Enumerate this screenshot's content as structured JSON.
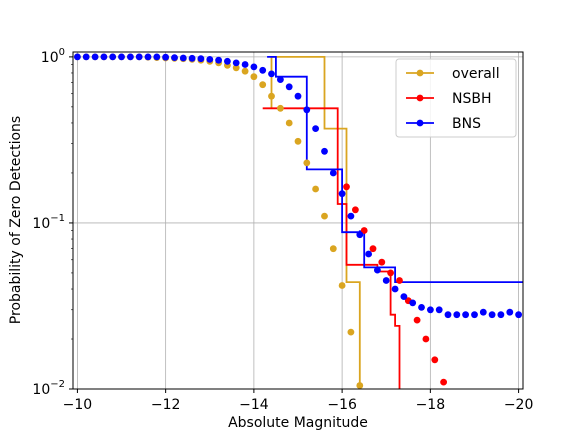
{
  "chart_data": {
    "type": "scatter",
    "xlabel": "Absolute Magnitude",
    "ylabel": "Probability of Zero Detections",
    "xlim": [
      -9.9,
      -20.1
    ],
    "ylim": [
      0.01,
      1.07
    ],
    "yscale": "log",
    "x_inverted": true,
    "grid": true,
    "legend_position": "top-right",
    "x_ticks": [
      -10,
      -12,
      -14,
      -16,
      -18,
      -20
    ],
    "x_tick_labels": [
      "−10",
      "−12",
      "−14",
      "−16",
      "−18",
      "−20"
    ],
    "y_ticks": [
      1,
      0.1,
      0.01
    ],
    "y_tick_labels": [
      {
        "base": "10",
        "exp": "0"
      },
      {
        "base": "10",
        "exp": "−1"
      },
      {
        "base": "10",
        "exp": "−2"
      }
    ],
    "series": [
      {
        "name": "overall",
        "color": "#DAA520",
        "points": {
          "x": [
            -10.0,
            -10.2,
            -10.4,
            -10.6,
            -10.8,
            -11.0,
            -11.2,
            -11.4,
            -11.6,
            -11.8,
            -12.0,
            -12.2,
            -12.4,
            -12.6,
            -12.8,
            -13.0,
            -13.2,
            -13.4,
            -13.6,
            -13.8,
            -14.0,
            -14.2,
            -14.4,
            -14.6,
            -14.8,
            -15.0,
            -15.2,
            -15.4,
            -15.6,
            -15.8,
            -16.0,
            -16.2,
            -16.4
          ],
          "y": [
            1.0,
            1.0,
            1.0,
            1.0,
            1.0,
            1.0,
            1.0,
            1.0,
            0.995,
            0.99,
            0.985,
            0.98,
            0.975,
            0.965,
            0.955,
            0.94,
            0.92,
            0.89,
            0.86,
            0.82,
            0.76,
            0.68,
            0.58,
            0.49,
            0.4,
            0.31,
            0.23,
            0.16,
            0.11,
            0.07,
            0.042,
            0.022,
            0.0105
          ]
        },
        "step": {
          "x": [
            -14.4,
            -14.4,
            -15.6,
            -15.6,
            -16.1,
            -16.1,
            -16.4,
            -16.4
          ],
          "y": [
            0.49,
            1.0,
            1.0,
            0.37,
            0.37,
            0.044,
            0.044,
            0.005
          ]
        }
      },
      {
        "name": "NSBH",
        "color": "#FF0000",
        "points": {
          "x": [
            -16.1,
            -16.3,
            -16.5,
            -16.7,
            -16.9,
            -17.1,
            -17.3,
            -17.5,
            -17.7,
            -17.9,
            -18.1,
            -18.3,
            -18.5
          ],
          "y": [
            0.165,
            0.12,
            0.09,
            0.07,
            0.058,
            0.05,
            0.045,
            0.034,
            0.026,
            0.02,
            0.015,
            0.011,
            0.008
          ]
        },
        "step": {
          "x": [
            -14.2,
            -15.9,
            -15.9,
            -16.1,
            -16.1,
            -16.8,
            -16.8,
            -17.1,
            -17.1,
            -17.2,
            -17.2,
            -17.3,
            -17.3
          ],
          "y": [
            0.49,
            0.49,
            0.13,
            0.13,
            0.056,
            0.056,
            0.051,
            0.051,
            0.028,
            0.028,
            0.024,
            0.024,
            0.005
          ]
        }
      },
      {
        "name": "BNS",
        "color": "#0000FF",
        "points": {
          "x": [
            -10.0,
            -10.2,
            -10.4,
            -10.6,
            -10.8,
            -11.0,
            -11.2,
            -11.4,
            -11.6,
            -11.8,
            -12.0,
            -12.2,
            -12.4,
            -12.6,
            -12.8,
            -13.0,
            -13.2,
            -13.4,
            -13.6,
            -13.8,
            -14.0,
            -14.2,
            -14.4,
            -14.6,
            -14.8,
            -15.0,
            -15.2,
            -15.4,
            -15.6,
            -15.8,
            -16.0,
            -16.2,
            -16.4,
            -16.6,
            -16.8,
            -17.0,
            -17.2,
            -17.4,
            -17.6,
            -17.8,
            -18.0,
            -18.2,
            -18.4,
            -18.6,
            -18.8,
            -19.0,
            -19.2,
            -19.4,
            -19.6,
            -19.8,
            -20.0
          ],
          "y": [
            1.0,
            1.0,
            1.0,
            1.0,
            1.0,
            1.0,
            1.0,
            1.0,
            1.0,
            1.0,
            0.995,
            0.99,
            0.985,
            0.98,
            0.975,
            0.965,
            0.955,
            0.94,
            0.92,
            0.9,
            0.87,
            0.83,
            0.79,
            0.73,
            0.66,
            0.58,
            0.48,
            0.37,
            0.27,
            0.2,
            0.15,
            0.11,
            0.085,
            0.065,
            0.052,
            0.045,
            0.04,
            0.036,
            0.033,
            0.031,
            0.03,
            0.03,
            0.028,
            0.028,
            0.028,
            0.028,
            0.029,
            0.028,
            0.028,
            0.029,
            0.028
          ]
        },
        "step": {
          "x": [
            -14.3,
            -14.5,
            -14.5,
            -14.6,
            -14.6,
            -15.2,
            -15.2,
            -16.0,
            -16.0,
            -16.4,
            -16.4,
            -16.5,
            -16.5,
            -17.2,
            -17.2,
            -20.2
          ],
          "y": [
            1.0,
            1.0,
            0.76,
            0.76,
            0.76,
            0.76,
            0.21,
            0.21,
            0.088,
            0.088,
            0.089,
            0.089,
            0.054,
            0.054,
            0.044,
            0.044
          ]
        }
      }
    ]
  }
}
